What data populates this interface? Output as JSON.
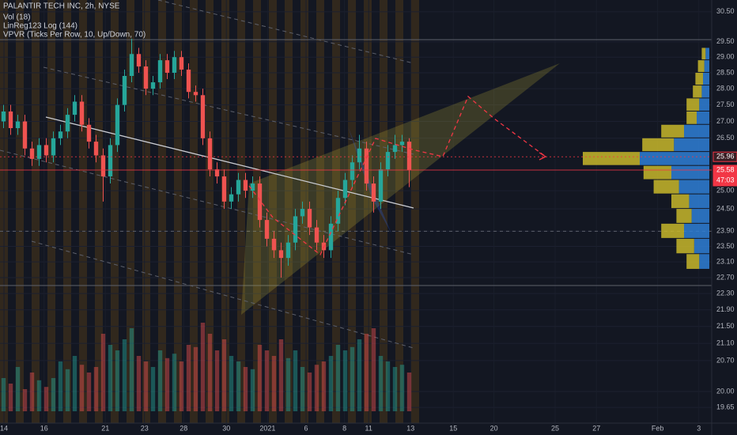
{
  "chart_data": {
    "type": "candlestick",
    "title": "PALANTIR TECH INC, 2h, NYSE",
    "indicators": [
      "Vol (18)",
      "LinReg123 Log (144)",
      "VPVR (Ticks Per Row, 10, Up/Down, 70)"
    ],
    "log_scale": true,
    "ylim": [
      19.31,
      30.9
    ],
    "yticks": [
      {
        "value": 30.5,
        "label": "30.50"
      },
      {
        "value": 29.5,
        "label": "29.50"
      },
      {
        "value": 29.0,
        "label": "29.00"
      },
      {
        "value": 28.5,
        "label": "28.50"
      },
      {
        "value": 28.0,
        "label": "28.00"
      },
      {
        "value": 27.5,
        "label": "27.50"
      },
      {
        "value": 27.0,
        "label": "27.00"
      },
      {
        "value": 26.5,
        "label": "26.50"
      },
      {
        "value": 25.0,
        "label": "25.00"
      },
      {
        "value": 24.5,
        "label": "24.50"
      },
      {
        "value": 23.9,
        "label": "23.90"
      },
      {
        "value": 23.5,
        "label": "23.50"
      },
      {
        "value": 23.1,
        "label": "23.10"
      },
      {
        "value": 22.7,
        "label": "22.70"
      },
      {
        "value": 22.3,
        "label": "22.30"
      },
      {
        "value": 21.9,
        "label": "21.90"
      },
      {
        "value": 21.5,
        "label": "21.50"
      },
      {
        "value": 21.1,
        "label": "21.10"
      },
      {
        "value": 20.7,
        "label": "20.70"
      },
      {
        "value": 20.0,
        "label": "20.00"
      },
      19.65
    ],
    "xlim": [
      0,
      100
    ],
    "xticks": [
      {
        "value": 0.56,
        "label": "14"
      },
      {
        "value": 6.2,
        "label": "16"
      },
      {
        "value": 14.8,
        "label": "21"
      },
      {
        "value": 20.3,
        "label": "23"
      },
      {
        "value": 25.8,
        "label": "28"
      },
      {
        "value": 31.8,
        "label": "30"
      },
      {
        "value": 37.6,
        "label": "2021"
      },
      {
        "value": 43,
        "label": "6"
      },
      {
        "value": 48.4,
        "label": "8"
      },
      {
        "value": 51.8,
        "label": "11"
      },
      {
        "value": 57.7,
        "label": "13"
      },
      {
        "value": 63.7,
        "label": "15"
      },
      {
        "value": 69.4,
        "label": "20"
      },
      {
        "value": 78,
        "label": "25"
      },
      {
        "value": 83.8,
        "label": "27"
      },
      {
        "value": 92.4,
        "label": "Feb"
      },
      {
        "value": 98.2,
        "label": "3"
      }
    ],
    "up_color": "#26a69a",
    "down_color": "#ef5350",
    "x": [
      0.5,
      1.5,
      2.5,
      3.5,
      4.5,
      5.5,
      6.5,
      7.5,
      8.5,
      9.5,
      10.5,
      11.5,
      12.5,
      13.5,
      14.5,
      15.5,
      16.5,
      17.5,
      18.5,
      19.5,
      20.5,
      21.5,
      22.5,
      23.5,
      24.5,
      25.5,
      26.5,
      27.5,
      28.5,
      29.5,
      30.5,
      31.5,
      32.5,
      33.5,
      34.5,
      35.5,
      36.5,
      37.5,
      38.5,
      39.5,
      40.5,
      41.5,
      42.5,
      43.5,
      44.5,
      45.5,
      46.5,
      47.5,
      48.5,
      49.5,
      50.5,
      51.5,
      52.5,
      53.5,
      54.5,
      55.5,
      56.5,
      57.5
    ],
    "open": [
      27.0,
      27.3,
      26.8,
      27.0,
      26.2,
      25.9,
      26.3,
      26.0,
      26.5,
      26.7,
      27.2,
      27.6,
      26.9,
      26.4,
      26.0,
      25.4,
      26.3,
      27.5,
      28.4,
      29.1,
      28.7,
      28.0,
      28.2,
      28.9,
      28.5,
      29.0,
      28.6,
      27.9,
      27.8,
      26.5,
      25.6,
      25.4,
      24.7,
      24.9,
      25.3,
      25.0,
      25.2,
      24.2,
      23.7,
      23.4,
      23.2,
      23.6,
      24.3,
      24.5,
      24.0,
      23.6,
      23.4,
      24.1,
      24.8,
      25.3,
      25.8,
      26.2,
      25.2,
      24.7,
      25.6,
      26.1,
      26.3,
      26.4
    ],
    "high": [
      27.5,
      27.5,
      27.2,
      27.2,
      26.4,
      26.5,
      26.5,
      26.7,
      26.9,
      27.4,
      27.8,
      27.8,
      27.1,
      26.6,
      26.2,
      26.5,
      27.7,
      28.6,
      29.6,
      29.3,
      28.9,
      28.4,
      29.1,
      29.1,
      29.2,
      29.2,
      28.8,
      28.1,
      28.0,
      26.7,
      25.8,
      25.6,
      25.1,
      25.5,
      25.5,
      25.4,
      25.4,
      24.4,
      23.9,
      23.6,
      23.8,
      24.5,
      24.7,
      24.7,
      24.2,
      23.8,
      24.3,
      25.0,
      25.5,
      26.0,
      26.6,
      26.4,
      25.4,
      25.8,
      26.3,
      26.6,
      26.6,
      26.5
    ],
    "low": [
      26.8,
      26.6,
      26.6,
      26.0,
      25.7,
      25.7,
      25.8,
      25.8,
      26.3,
      26.5,
      27.0,
      26.7,
      26.2,
      25.8,
      24.7,
      25.2,
      26.1,
      27.3,
      28.2,
      28.5,
      27.8,
      27.8,
      28.0,
      28.3,
      28.3,
      28.4,
      27.7,
      27.6,
      26.3,
      25.4,
      25.2,
      24.5,
      24.5,
      24.7,
      24.8,
      24.8,
      24.0,
      23.5,
      23.2,
      22.7,
      23.0,
      23.4,
      24.1,
      23.8,
      23.4,
      23.2,
      23.2,
      23.9,
      24.6,
      25.1,
      25.6,
      25.0,
      24.4,
      24.5,
      25.4,
      25.9,
      26.1,
      25.1
    ],
    "close": [
      27.3,
      26.8,
      27.0,
      26.2,
      25.9,
      26.3,
      26.0,
      26.5,
      26.7,
      27.2,
      27.6,
      26.9,
      26.4,
      26.0,
      25.4,
      26.3,
      27.5,
      28.4,
      29.1,
      28.7,
      28.0,
      28.2,
      28.9,
      28.5,
      29.0,
      28.6,
      27.9,
      27.8,
      26.5,
      25.6,
      25.4,
      24.7,
      24.9,
      25.3,
      25.0,
      25.2,
      24.2,
      23.7,
      23.4,
      23.2,
      23.6,
      24.3,
      24.5,
      24.0,
      23.6,
      23.4,
      24.1,
      24.8,
      25.3,
      25.8,
      26.2,
      25.2,
      24.7,
      25.6,
      26.1,
      26.3,
      26.4,
      25.58
    ],
    "volume_lim": [
      0,
      100
    ],
    "volume": [
      30,
      25,
      40,
      20,
      35,
      28,
      22,
      30,
      45,
      38,
      50,
      42,
      35,
      40,
      70,
      60,
      55,
      65,
      75,
      50,
      45,
      40,
      55,
      48,
      52,
      45,
      60,
      58,
      80,
      70,
      55,
      65,
      50,
      45,
      40,
      38,
      60,
      55,
      50,
      65,
      48,
      55,
      40,
      35,
      42,
      45,
      50,
      60,
      55,
      58,
      65,
      70,
      75,
      50,
      45,
      40,
      42,
      35
    ],
    "volume_profile": {
      "prices": [
        23.1,
        23.5,
        23.9,
        24.3,
        24.7,
        25.1,
        25.5,
        25.9,
        26.3,
        26.7,
        27.1,
        27.5,
        27.9,
        28.3,
        28.7,
        29.1
      ],
      "up": [
        8,
        12,
        20,
        14,
        16,
        24,
        30,
        55,
        28,
        20,
        10,
        8,
        6,
        5,
        4,
        3
      ],
      "down": [
        10,
        14,
        18,
        12,
        14,
        20,
        22,
        45,
        25,
        18,
        8,
        10,
        7,
        6,
        5,
        3
      ],
      "lim": [
        0,
        100
      ],
      "up_color": "#2f7fd6",
      "down_color": "#c8b72a"
    },
    "price_lines": [
      {
        "value": 25.96,
        "label": "25.96",
        "color": "#f23645",
        "style": "dotted"
      },
      {
        "value": 25.58,
        "label": "25.58",
        "color": "#f23645",
        "style": "solid"
      }
    ],
    "countdown": "47:03",
    "guide_lines": [
      29.57,
      23.9,
      22.5
    ]
  }
}
